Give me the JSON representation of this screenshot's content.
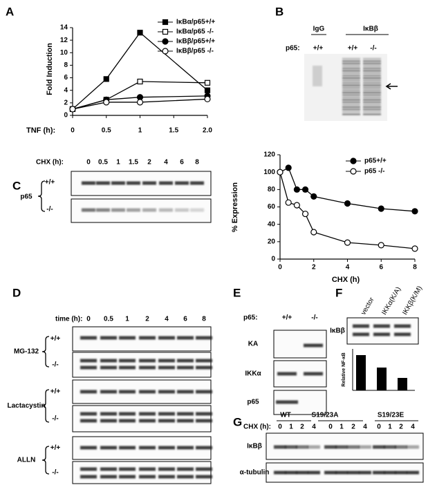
{
  "panel_labels": [
    "A",
    "B",
    "C",
    "D",
    "E",
    "F",
    "G"
  ],
  "chart_data": [
    {
      "type": "line",
      "y_label": "Fold Induction",
      "x_label": "TNF (h):",
      "x": [
        0,
        0.5,
        1,
        2
      ],
      "xlim": [
        0,
        2
      ],
      "xticks": [
        0,
        0.5,
        1,
        1.5,
        {
          "value": 2,
          "label": "2.0"
        }
      ],
      "ylim": [
        0,
        14
      ],
      "yticks": [
        0,
        2,
        4,
        6,
        8,
        10,
        12,
        14
      ],
      "series": [
        {
          "name": "IκBα/p65+/+",
          "color": "#000000",
          "marker": "square",
          "filled": true,
          "values": [
            1,
            5.8,
            13.2,
            4.0
          ]
        },
        {
          "name": "IκBα/p65 -/-",
          "color": "#000000",
          "marker": "square",
          "filled": false,
          "values": [
            1,
            2.5,
            5.4,
            5.2
          ]
        },
        {
          "name": "IκBβ/p65+/+",
          "color": "#000000",
          "marker": "circle",
          "filled": true,
          "values": [
            1,
            2.5,
            2.9,
            3.1
          ]
        },
        {
          "name": "IκBβ/p65 -/-",
          "color": "#000000",
          "marker": "circle",
          "filled": false,
          "values": [
            1,
            2.1,
            2.1,
            2.6
          ]
        }
      ]
    },
    {
      "type": "line",
      "y_label": "% Expression",
      "x_label": "CHX (h)",
      "x": [
        0,
        0.5,
        1,
        1.5,
        2,
        4,
        6,
        8
      ],
      "xlim": [
        0,
        8
      ],
      "xticks": [
        0,
        2,
        4,
        6,
        8
      ],
      "ylim": [
        0,
        120
      ],
      "yticks": [
        0,
        20,
        40,
        60,
        80,
        100,
        120
      ],
      "series": [
        {
          "name": "p65+/+",
          "color": "#000000",
          "marker": "circle",
          "filled": true,
          "values": [
            100,
            105,
            80,
            80,
            72,
            64,
            58,
            55
          ]
        },
        {
          "name": "p65 -/-",
          "color": "#000000",
          "marker": "circle",
          "filled": false,
          "values": [
            100,
            65,
            62,
            52,
            31,
            19,
            16,
            12
          ]
        }
      ]
    },
    {
      "type": "bar",
      "y_label": "Relative NF-κB",
      "categories": [
        "vector",
        "IKKα(K/A)",
        "IKKβ(K/M)"
      ],
      "values": [
        6.8,
        4.4,
        2.4
      ],
      "color": "#000000",
      "ylim": [
        0,
        8
      ]
    }
  ],
  "blots": {
    "B": {
      "groups": [
        "IgG",
        "IκBβ"
      ],
      "genotype_label": "p65:",
      "genotypes": [
        "+/+",
        "+/+",
        "-/-"
      ]
    },
    "C": {
      "time_label": "CHX (h):",
      "times": [
        "0",
        "0.5",
        "1",
        "1.5",
        "2",
        "4",
        "6",
        "8"
      ],
      "protein": "p65",
      "rows": [
        "+/+",
        "-/-"
      ]
    },
    "D": {
      "time_label": "time (h):",
      "times": [
        "0",
        "0.5",
        "1",
        "2",
        "4",
        "6",
        "8"
      ],
      "groups": [
        {
          "name": "MG-132",
          "rows": [
            "+/+",
            "-/-"
          ]
        },
        {
          "name": "Lactacystin",
          "rows": [
            "+/+",
            "-/-"
          ]
        },
        {
          "name": "ALLN",
          "rows": [
            "+/+",
            "-/-"
          ]
        }
      ]
    },
    "E": {
      "genotype_label": "p65:",
      "genotypes": [
        "+/+",
        "-/-"
      ],
      "rows": [
        "KA",
        "IKKα",
        "p65"
      ]
    },
    "F": {
      "row": "IκBβ"
    },
    "G": {
      "groups": [
        "WT",
        "S19/23A",
        "S19/23E"
      ],
      "time_label": "CHX (h):",
      "times": [
        "0",
        "1",
        "2",
        "4",
        "0",
        "1",
        "2",
        "4",
        "0",
        "1",
        "2",
        "4"
      ],
      "rows": [
        "IκBβ",
        "α-tubulin"
      ]
    }
  }
}
